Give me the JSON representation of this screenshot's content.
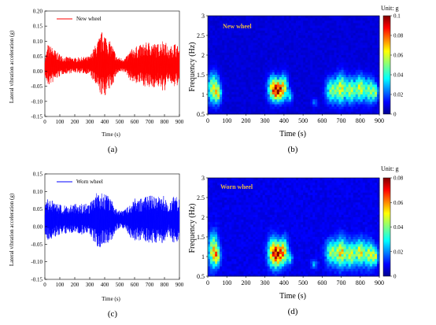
{
  "chart_data": [
    {
      "id": "a",
      "type": "line",
      "panel_label": "(a)",
      "legend": "New wheel",
      "xlabel": "Time (s)",
      "ylabel": "Lateral vibration acceleration (g)",
      "xlim": [
        0,
        900
      ],
      "ylim": [
        -0.15,
        0.2
      ],
      "xticks": [
        "0",
        "100",
        "200",
        "300",
        "400",
        "500",
        "600",
        "700",
        "800",
        "900"
      ],
      "yticks": [
        "-0.15",
        "-0.10",
        "-0.05",
        "0.00",
        "0.05",
        "0.10",
        "0.15",
        "0.20"
      ],
      "color": "#ff0000",
      "envelope": [
        [
          0,
          0.02,
          0.04
        ],
        [
          20,
          0.07,
          0.07
        ],
        [
          50,
          0.06,
          0.06
        ],
        [
          80,
          0.045,
          0.045
        ],
        [
          120,
          0.03,
          0.03
        ],
        [
          200,
          0.025,
          0.025
        ],
        [
          300,
          0.03,
          0.03
        ],
        [
          330,
          0.06,
          0.06
        ],
        [
          360,
          0.09,
          0.09
        ],
        [
          390,
          0.12,
          0.11
        ],
        [
          420,
          0.09,
          0.09
        ],
        [
          450,
          0.07,
          0.07
        ],
        [
          480,
          0.03,
          0.03
        ],
        [
          500,
          0.025,
          0.025
        ],
        [
          540,
          0.025,
          0.025
        ],
        [
          570,
          0.05,
          0.05
        ],
        [
          600,
          0.06,
          0.06
        ],
        [
          650,
          0.07,
          0.065
        ],
        [
          700,
          0.08,
          0.08
        ],
        [
          750,
          0.07,
          0.07
        ],
        [
          800,
          0.09,
          0.09
        ],
        [
          830,
          0.05,
          0.05
        ],
        [
          860,
          0.08,
          0.08
        ],
        [
          900,
          0.06,
          0.06
        ]
      ]
    },
    {
      "id": "b",
      "type": "heatmap",
      "panel_label": "(b)",
      "inner_label": "New wheel",
      "unit_label": "Unit: g",
      "xlabel": "Time (s)",
      "ylabel": "Frequency (Hz)",
      "xlim": [
        0,
        900
      ],
      "ylim": [
        0.5,
        3
      ],
      "xticks": [
        "0",
        "100",
        "200",
        "300",
        "400",
        "500",
        "600",
        "700",
        "800",
        "900"
      ],
      "yticks": [
        "0.5",
        "1",
        "1.5",
        "2",
        "2.5",
        "3"
      ],
      "colorbar_ticks": [
        "0",
        "0.02",
        "0.04",
        "0.06",
        "0.08",
        "0.1"
      ],
      "clim": [
        0,
        0.1
      ],
      "blobs": [
        [
          30,
          1.15,
          30,
          0.35,
          0.06
        ],
        [
          55,
          1.0,
          15,
          0.2,
          0.04
        ],
        [
          340,
          1.15,
          25,
          0.3,
          0.06
        ],
        [
          370,
          1.1,
          25,
          0.25,
          0.085
        ],
        [
          400,
          1.2,
          20,
          0.3,
          0.05
        ],
        [
          430,
          0.95,
          15,
          0.15,
          0.03
        ],
        [
          560,
          0.8,
          15,
          0.1,
          0.02
        ],
        [
          650,
          1.1,
          30,
          0.3,
          0.05
        ],
        [
          700,
          1.15,
          25,
          0.35,
          0.06
        ],
        [
          750,
          1.1,
          25,
          0.3,
          0.055
        ],
        [
          800,
          1.15,
          25,
          0.3,
          0.06
        ],
        [
          850,
          1.1,
          25,
          0.3,
          0.05
        ],
        [
          880,
          1.05,
          15,
          0.2,
          0.04
        ]
      ]
    },
    {
      "id": "c",
      "type": "line",
      "panel_label": "(c)",
      "legend": "Worn wheel",
      "xlabel": "Time (s)",
      "ylabel": "Lateral vibration acceleration (g)",
      "xlim": [
        0,
        900
      ],
      "ylim": [
        -0.15,
        0.15
      ],
      "xticks": [
        "0",
        "100",
        "200",
        "300",
        "400",
        "500",
        "600",
        "700",
        "800",
        "900"
      ],
      "yticks": [
        "-0.15",
        "-0.10",
        "-0.05",
        "0.00",
        "0.05",
        "0.10",
        "0.15"
      ],
      "color": "#0000ff",
      "envelope": [
        [
          0,
          0.04,
          0.04
        ],
        [
          20,
          0.06,
          0.06
        ],
        [
          50,
          0.055,
          0.055
        ],
        [
          80,
          0.045,
          0.045
        ],
        [
          120,
          0.04,
          0.04
        ],
        [
          200,
          0.045,
          0.04
        ],
        [
          300,
          0.045,
          0.045
        ],
        [
          330,
          0.07,
          0.07
        ],
        [
          360,
          0.08,
          0.08
        ],
        [
          390,
          0.08,
          0.08
        ],
        [
          420,
          0.07,
          0.07
        ],
        [
          450,
          0.055,
          0.055
        ],
        [
          480,
          0.03,
          0.03
        ],
        [
          500,
          0.025,
          0.025
        ],
        [
          540,
          0.03,
          0.03
        ],
        [
          570,
          0.05,
          0.05
        ],
        [
          600,
          0.06,
          0.06
        ],
        [
          650,
          0.06,
          0.06
        ],
        [
          700,
          0.07,
          0.07
        ],
        [
          750,
          0.065,
          0.065
        ],
        [
          800,
          0.07,
          0.07
        ],
        [
          830,
          0.04,
          0.04
        ],
        [
          860,
          0.07,
          0.07
        ],
        [
          900,
          0.06,
          0.06
        ]
      ]
    },
    {
      "id": "d",
      "type": "heatmap",
      "panel_label": "(d)",
      "inner_label": "Worn wheel",
      "unit_label": "Unit: g",
      "xlabel": "Time (s)",
      "ylabel": "Frequency (Hz)",
      "xlim": [
        0,
        900
      ],
      "ylim": [
        0.5,
        3
      ],
      "xticks": [
        "0",
        "100",
        "200",
        "300",
        "400",
        "500",
        "600",
        "700",
        "800",
        "900"
      ],
      "yticks": [
        "0.5",
        "1",
        "1.5",
        "2",
        "2.5",
        "3"
      ],
      "colorbar_ticks": [
        "0",
        "0.02",
        "0.04",
        "0.06",
        "0.08"
      ],
      "clim": [
        0,
        0.08
      ],
      "blobs": [
        [
          30,
          1.15,
          25,
          0.4,
          0.05
        ],
        [
          50,
          1.0,
          15,
          0.2,
          0.035
        ],
        [
          340,
          1.1,
          25,
          0.35,
          0.05
        ],
        [
          370,
          1.05,
          25,
          0.3,
          0.06
        ],
        [
          400,
          1.15,
          20,
          0.3,
          0.045
        ],
        [
          430,
          0.95,
          15,
          0.15,
          0.025
        ],
        [
          560,
          0.8,
          15,
          0.1,
          0.02
        ],
        [
          650,
          1.1,
          30,
          0.3,
          0.04
        ],
        [
          700,
          1.1,
          25,
          0.35,
          0.05
        ],
        [
          750,
          1.05,
          25,
          0.3,
          0.045
        ],
        [
          800,
          1.1,
          25,
          0.3,
          0.05
        ],
        [
          850,
          1.05,
          25,
          0.3,
          0.045
        ],
        [
          880,
          1.0,
          15,
          0.2,
          0.035
        ]
      ]
    }
  ]
}
